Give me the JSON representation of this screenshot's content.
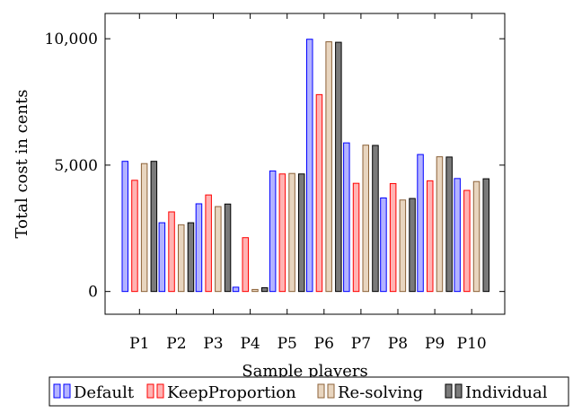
{
  "chart_data": {
    "type": "bar",
    "title": "",
    "xlabel": "Sample players",
    "ylabel": "Total cost in cents",
    "categories": [
      "P1",
      "P2",
      "P3",
      "P4",
      "P5",
      "P6",
      "P7",
      "P8",
      "P9",
      "P10"
    ],
    "ylim": [
      -900,
      11000
    ],
    "yticks": [
      0,
      5000,
      10000
    ],
    "ytick_labels": [
      "0",
      "5,000",
      "10,000"
    ],
    "grid": false,
    "legend_position": "bottom",
    "series": [
      {
        "name": "Default",
        "stroke": "#0000ff",
        "fill": "#b3b3ff",
        "values": [
          5150,
          2720,
          3470,
          170,
          4770,
          9980,
          5880,
          3700,
          5420,
          4470
        ]
      },
      {
        "name": "KeepProportion",
        "stroke": "#ff0000",
        "fill": "#ffb3b3",
        "values": [
          4400,
          3150,
          3820,
          2130,
          4650,
          7790,
          4280,
          4270,
          4380,
          4000
        ]
      },
      {
        "name": "Re-solving",
        "stroke": "#8c6239",
        "fill": "#e8d5bf",
        "values": [
          5060,
          2640,
          3360,
          80,
          4670,
          9880,
          5790,
          3620,
          5330,
          4350
        ]
      },
      {
        "name": "Individual",
        "stroke": "#000000",
        "fill": "#7a7a7a",
        "values": [
          5150,
          2720,
          3460,
          150,
          4650,
          9860,
          5780,
          3680,
          5320,
          4460
        ]
      }
    ]
  }
}
